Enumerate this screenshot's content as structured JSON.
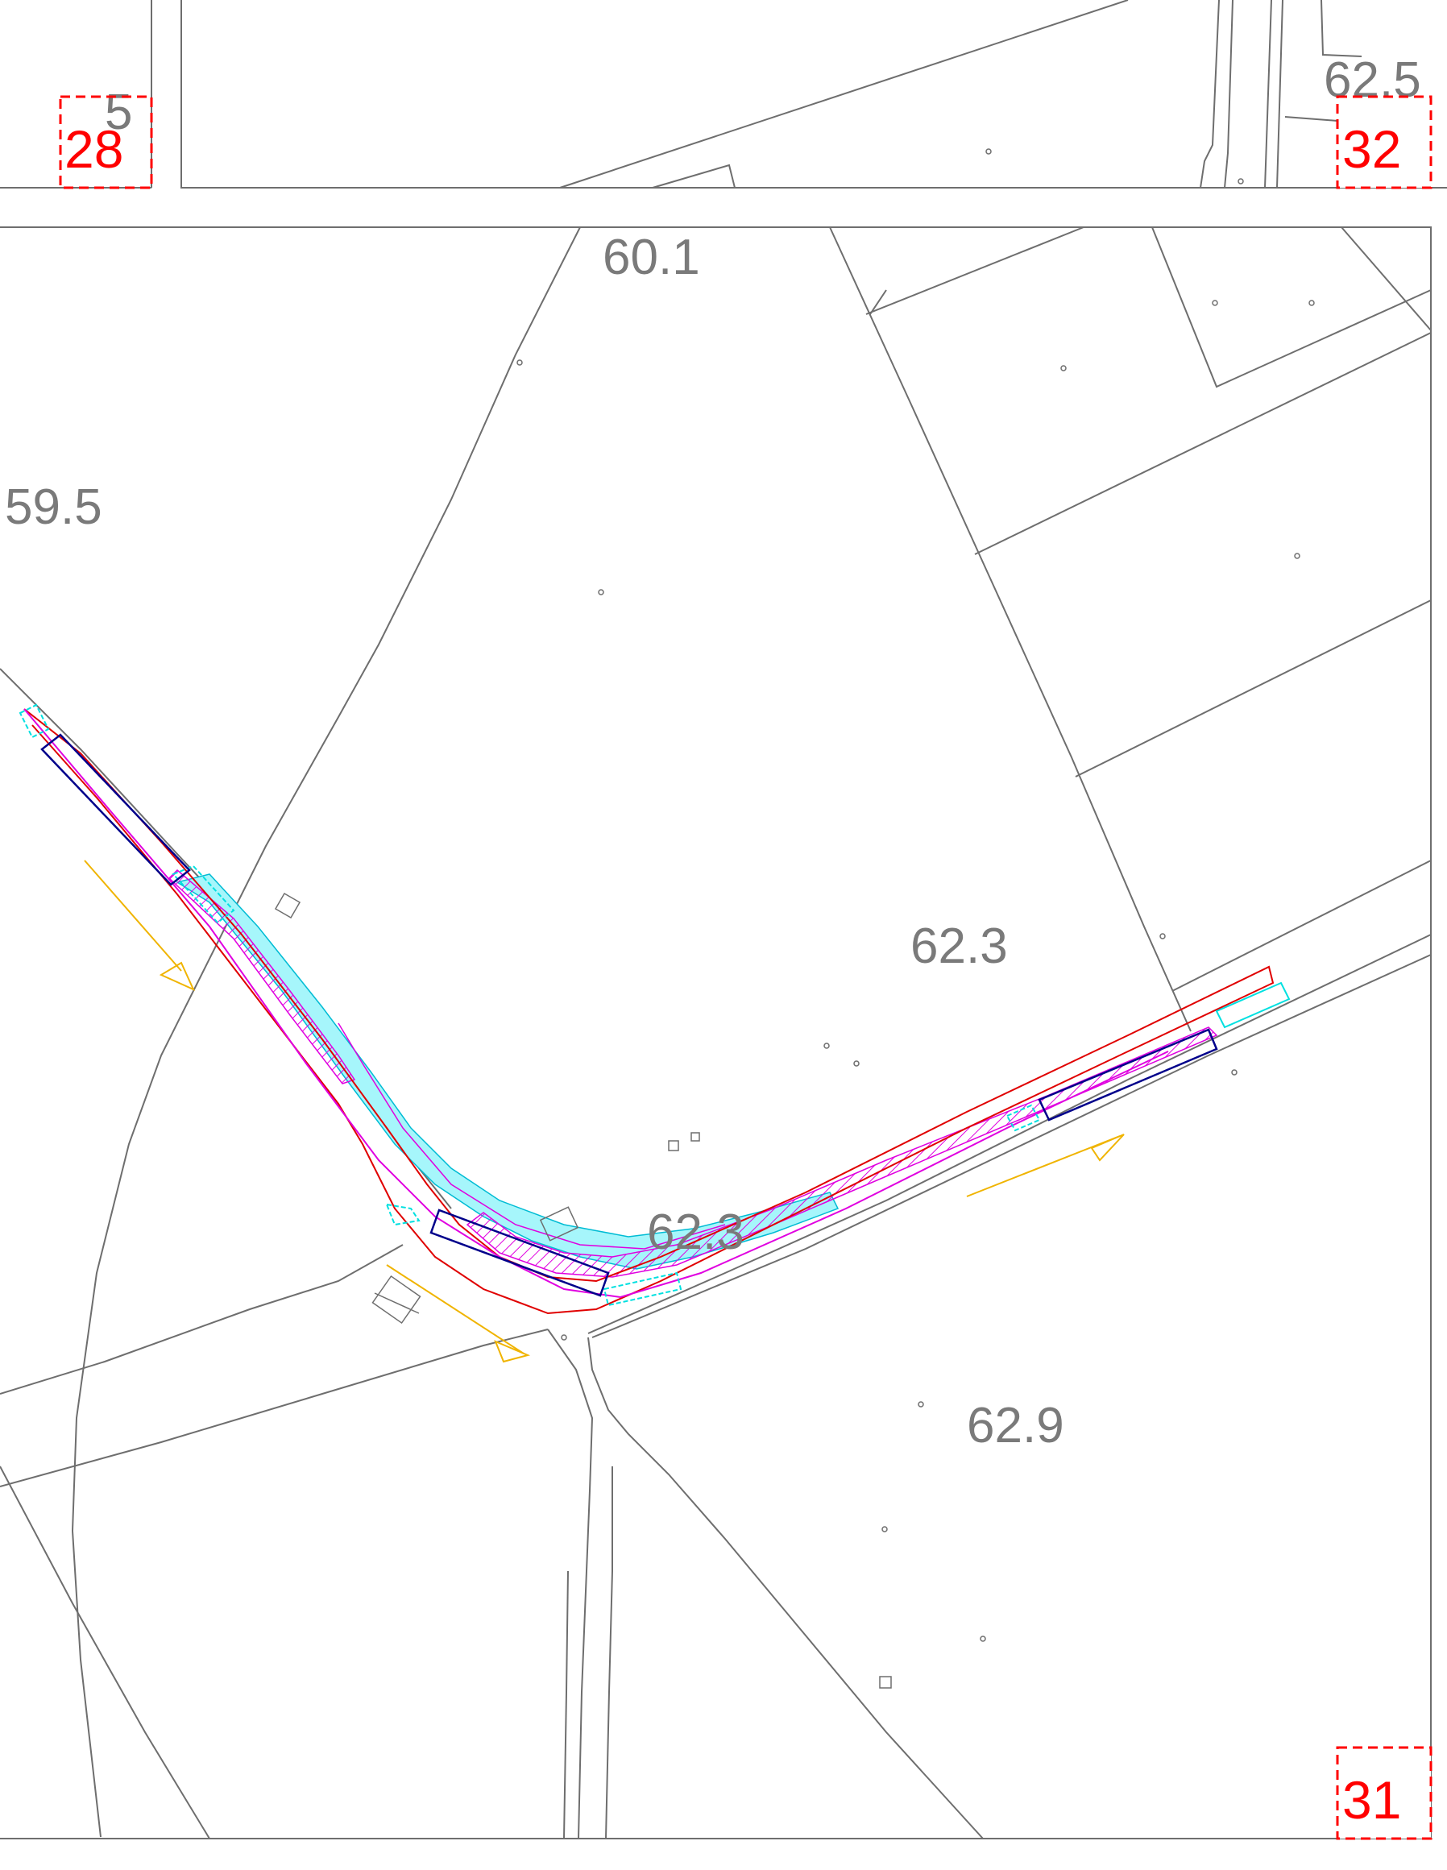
{
  "map": {
    "parcel_labels": {
      "p601": "60.1",
      "p595": "59.5",
      "p623a": "62.3",
      "p623b": "62.3",
      "p629": "62.9",
      "p62x": "62.5",
      "p5x": "5"
    },
    "sheet_references": {
      "sheet28": "28",
      "sheet32": "32",
      "sheet31": "31"
    },
    "colors": {
      "parcel_lines": "#6e6e6e",
      "sheet_reference": "#ff0000",
      "road_fill": "#a6f6fb",
      "road_edge_red": "#e00000",
      "road_edge_magenta": "#e000e0",
      "work_zone_blue": "#00008b",
      "flow_arrow": "#f0b400"
    }
  }
}
